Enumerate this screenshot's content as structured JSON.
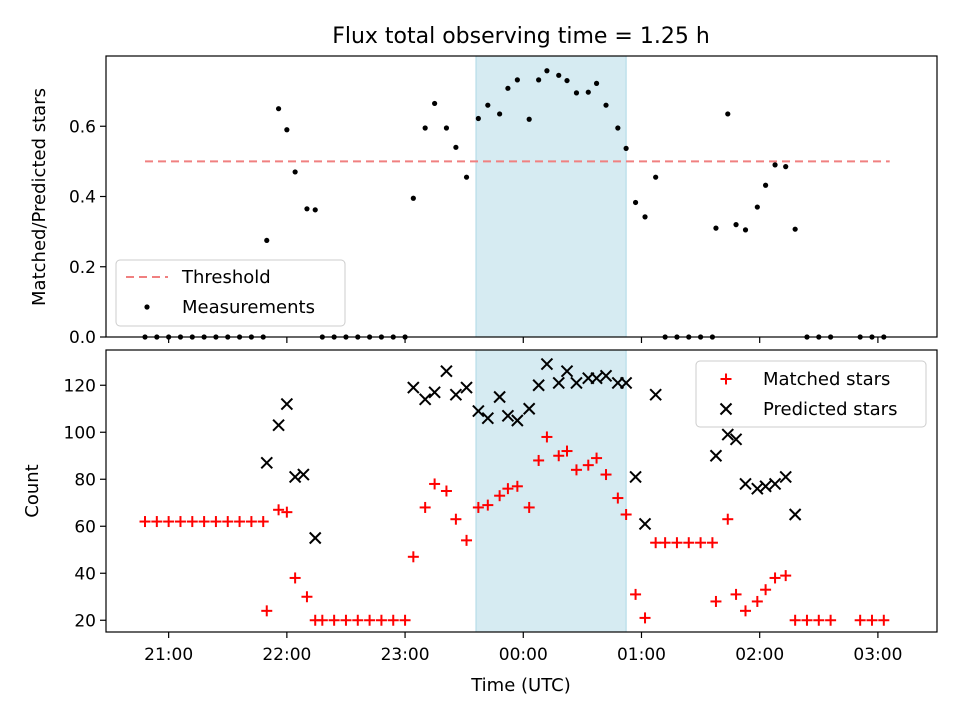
{
  "title": "Flux total observing time = 1.25 h",
  "colors": {
    "highlight": "#add8e6",
    "threshold": "#f08080",
    "measurements": "#000000",
    "matched": "#ff0000",
    "predicted": "#000000"
  },
  "chart_data": [
    {
      "type": "scatter",
      "ylabel": "Matched/Predicted stars",
      "ylim": [
        0,
        0.8
      ],
      "xlim": [
        -3.53,
        3.5
      ],
      "yticks": [
        0.0,
        0.2,
        0.4,
        0.6
      ],
      "ytick_labels": [
        "0.0",
        "0.2",
        "0.4",
        "0.6"
      ],
      "highlight_span": [
        -0.4,
        0.87
      ],
      "threshold": 0.5,
      "threshold_x_range": [
        -3.2,
        3.1
      ],
      "legend_position": "lower-left",
      "legend": [
        "Threshold",
        "Measurements"
      ],
      "measurements": [
        [
          -3.2,
          0
        ],
        [
          -3.1,
          0
        ],
        [
          -3.0,
          0
        ],
        [
          -2.9,
          0
        ],
        [
          -2.8,
          0
        ],
        [
          -2.7,
          0
        ],
        [
          -2.6,
          0
        ],
        [
          -2.5,
          0
        ],
        [
          -2.4,
          0
        ],
        [
          -2.3,
          0
        ],
        [
          -2.2,
          0
        ],
        [
          -2.17,
          0.275
        ],
        [
          -2.07,
          0.65
        ],
        [
          -2.0,
          0.59
        ],
        [
          -1.93,
          0.47
        ],
        [
          -1.83,
          0.365
        ],
        [
          -1.76,
          0.362
        ],
        [
          -1.7,
          0
        ],
        [
          -1.6,
          0
        ],
        [
          -1.5,
          0
        ],
        [
          -1.4,
          0
        ],
        [
          -1.3,
          0
        ],
        [
          -1.2,
          0
        ],
        [
          -1.1,
          0
        ],
        [
          -1.0,
          0
        ],
        [
          -0.93,
          0.395
        ],
        [
          -0.83,
          0.595
        ],
        [
          -0.75,
          0.665
        ],
        [
          -0.65,
          0.595
        ],
        [
          -0.57,
          0.54
        ],
        [
          -0.48,
          0.455
        ],
        [
          -0.38,
          0.622
        ],
        [
          -0.3,
          0.66
        ],
        [
          -0.2,
          0.635
        ],
        [
          -0.13,
          0.708
        ],
        [
          -0.05,
          0.732
        ],
        [
          0.05,
          0.62
        ],
        [
          0.13,
          0.732
        ],
        [
          0.2,
          0.758
        ],
        [
          0.3,
          0.745
        ],
        [
          0.37,
          0.73
        ],
        [
          0.45,
          0.695
        ],
        [
          0.55,
          0.697
        ],
        [
          0.62,
          0.722
        ],
        [
          0.7,
          0.66
        ],
        [
          0.8,
          0.595
        ],
        [
          0.87,
          0.537
        ],
        [
          0.95,
          0.383
        ],
        [
          1.03,
          0.342
        ],
        [
          1.12,
          0.455
        ],
        [
          1.2,
          0
        ],
        [
          1.3,
          0
        ],
        [
          1.4,
          0
        ],
        [
          1.5,
          0
        ],
        [
          1.6,
          0
        ],
        [
          1.63,
          0.31
        ],
        [
          1.73,
          0.635
        ],
        [
          1.8,
          0.32
        ],
        [
          1.88,
          0.305
        ],
        [
          1.98,
          0.37
        ],
        [
          2.05,
          0.432
        ],
        [
          2.13,
          0.49
        ],
        [
          2.22,
          0.485
        ],
        [
          2.3,
          0.307
        ],
        [
          2.4,
          0
        ],
        [
          2.5,
          0
        ],
        [
          2.6,
          0
        ],
        [
          2.85,
          0
        ],
        [
          2.95,
          0
        ],
        [
          3.05,
          0
        ]
      ]
    },
    {
      "type": "scatter",
      "xlabel": "Time (UTC)",
      "ylabel": "Count",
      "ylim": [
        15,
        135
      ],
      "xlim": [
        -3.53,
        3.5
      ],
      "yticks": [
        20,
        40,
        60,
        80,
        100,
        120
      ],
      "ytick_labels": [
        "20",
        "40",
        "60",
        "80",
        "100",
        "120"
      ],
      "xticks": [
        -3.0,
        -2.0,
        -1.0,
        0.0,
        1.0,
        2.0,
        3.0
      ],
      "xtick_labels": [
        "21:00",
        "22:00",
        "23:00",
        "00:00",
        "01:00",
        "02:00",
        "03:00"
      ],
      "highlight_span": [
        -0.4,
        0.87
      ],
      "legend_position": "upper-right",
      "series": [
        {
          "name": "Matched stars",
          "marker": "plus",
          "points": [
            [
              -3.2,
              62
            ],
            [
              -3.1,
              62
            ],
            [
              -3.0,
              62
            ],
            [
              -2.9,
              62
            ],
            [
              -2.8,
              62
            ],
            [
              -2.7,
              62
            ],
            [
              -2.6,
              62
            ],
            [
              -2.5,
              62
            ],
            [
              -2.4,
              62
            ],
            [
              -2.3,
              62
            ],
            [
              -2.2,
              62
            ],
            [
              -2.17,
              24
            ],
            [
              -2.07,
              67
            ],
            [
              -2.0,
              66
            ],
            [
              -1.93,
              38
            ],
            [
              -1.83,
              30
            ],
            [
              -1.76,
              20
            ],
            [
              -1.7,
              20
            ],
            [
              -1.6,
              20
            ],
            [
              -1.5,
              20
            ],
            [
              -1.4,
              20
            ],
            [
              -1.3,
              20
            ],
            [
              -1.2,
              20
            ],
            [
              -1.1,
              20
            ],
            [
              -1.0,
              20
            ],
            [
              -0.93,
              47
            ],
            [
              -0.83,
              68
            ],
            [
              -0.75,
              78
            ],
            [
              -0.65,
              75
            ],
            [
              -0.57,
              63
            ],
            [
              -0.48,
              54
            ],
            [
              -0.38,
              68
            ],
            [
              -0.3,
              69
            ],
            [
              -0.2,
              73
            ],
            [
              -0.13,
              76
            ],
            [
              -0.05,
              77
            ],
            [
              0.05,
              68
            ],
            [
              0.13,
              88
            ],
            [
              0.2,
              98
            ],
            [
              0.3,
              90
            ],
            [
              0.37,
              92
            ],
            [
              0.45,
              84
            ],
            [
              0.55,
              86
            ],
            [
              0.62,
              89
            ],
            [
              0.7,
              82
            ],
            [
              0.8,
              72
            ],
            [
              0.87,
              65
            ],
            [
              0.95,
              31
            ],
            [
              1.03,
              21
            ],
            [
              1.12,
              53
            ],
            [
              1.2,
              53
            ],
            [
              1.3,
              53
            ],
            [
              1.4,
              53
            ],
            [
              1.5,
              53
            ],
            [
              1.6,
              53
            ],
            [
              1.63,
              28
            ],
            [
              1.73,
              63
            ],
            [
              1.8,
              31
            ],
            [
              1.88,
              24
            ],
            [
              1.98,
              28
            ],
            [
              2.05,
              33
            ],
            [
              2.13,
              38
            ],
            [
              2.22,
              39
            ],
            [
              2.3,
              20
            ],
            [
              2.4,
              20
            ],
            [
              2.5,
              20
            ],
            [
              2.6,
              20
            ],
            [
              2.85,
              20
            ],
            [
              2.95,
              20
            ],
            [
              3.05,
              20
            ]
          ]
        },
        {
          "name": "Predicted stars",
          "marker": "x",
          "points": [
            [
              -2.17,
              87
            ],
            [
              -2.07,
              103
            ],
            [
              -2.0,
              112
            ],
            [
              -1.93,
              81
            ],
            [
              -1.86,
              82
            ],
            [
              -1.76,
              55
            ],
            [
              -0.93,
              119
            ],
            [
              -0.83,
              114
            ],
            [
              -0.75,
              117
            ],
            [
              -0.65,
              126
            ],
            [
              -0.57,
              116
            ],
            [
              -0.48,
              119
            ],
            [
              -0.38,
              109
            ],
            [
              -0.3,
              106
            ],
            [
              -0.2,
              115
            ],
            [
              -0.13,
              107
            ],
            [
              -0.05,
              105
            ],
            [
              0.05,
              110
            ],
            [
              0.13,
              120
            ],
            [
              0.2,
              129
            ],
            [
              0.3,
              121
            ],
            [
              0.37,
              126
            ],
            [
              0.45,
              121
            ],
            [
              0.55,
              123
            ],
            [
              0.62,
              123
            ],
            [
              0.7,
              124
            ],
            [
              0.8,
              121
            ],
            [
              0.87,
              121
            ],
            [
              0.95,
              81
            ],
            [
              1.03,
              61
            ],
            [
              1.12,
              116
            ],
            [
              1.63,
              90
            ],
            [
              1.73,
              99
            ],
            [
              1.8,
              97
            ],
            [
              1.88,
              78
            ],
            [
              1.98,
              76
            ],
            [
              2.05,
              77
            ],
            [
              2.13,
              78
            ],
            [
              2.22,
              81
            ],
            [
              2.3,
              65
            ]
          ]
        }
      ]
    }
  ]
}
